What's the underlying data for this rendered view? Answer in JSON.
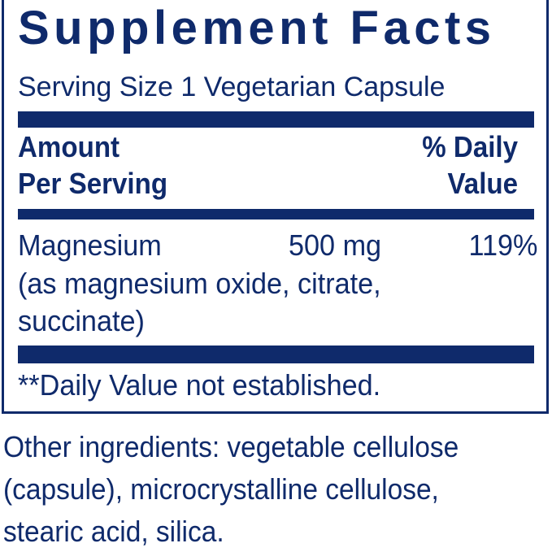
{
  "panel": {
    "title": "Supplement Facts",
    "serving_size": "Serving Size 1 Vegetarian Capsule",
    "header": {
      "amount_line1": "Amount",
      "amount_line2": "Per Serving",
      "dv_line1": "% Daily",
      "dv_line2": "Value"
    },
    "nutrients": [
      {
        "name": "Magnesium",
        "amount": "500 mg",
        "daily_value": "119%",
        "detail_line1": "(as magnesium oxide, citrate,",
        "detail_line2": "succinate)"
      }
    ],
    "footnote": "**Daily Value not established."
  },
  "other_ingredients": {
    "line1": "Other ingredients: vegetable cellulose",
    "line2": "(capsule), microcrystalline cellulose,",
    "line3": "stearic acid, silica."
  },
  "colors": {
    "ink": "#0f2a6b"
  }
}
